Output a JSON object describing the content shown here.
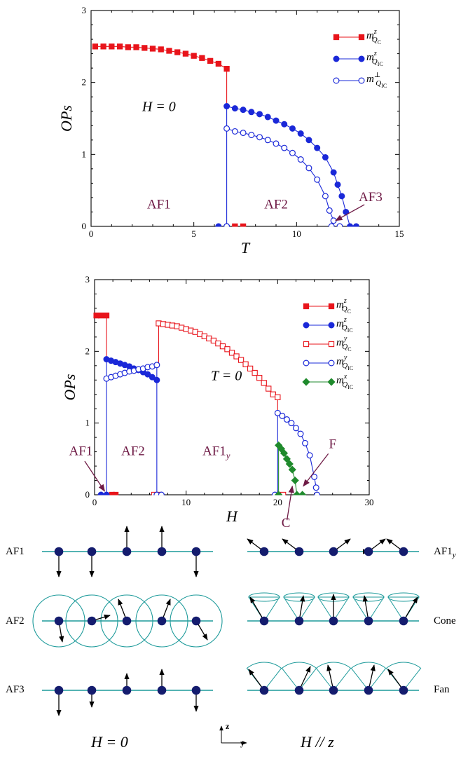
{
  "colors": {
    "red": "#e8141b",
    "blue": "#1a28d8",
    "green": "#1f8a2c",
    "maroon": "#6e1a45",
    "teal": "#1c9a9a",
    "navy": "#141c6e",
    "axis": "#000000"
  },
  "chart_data": [
    {
      "type": "line",
      "xlabel": "T",
      "ylabel": "OPs",
      "xlim": [
        0,
        15
      ],
      "ylim": [
        0,
        3
      ],
      "xticks": [
        "0",
        "5",
        "10",
        "15"
      ],
      "yticks": [
        "0",
        "1",
        "2",
        "3"
      ],
      "legend_position": "top-right",
      "annotation_text": "H = 0",
      "regions": [
        {
          "label": "AF1",
          "x": 3.3,
          "y": 0.25
        },
        {
          "label": "AF2",
          "x": 9.0,
          "y": 0.25
        },
        {
          "label": "AF3",
          "x": 13.6,
          "y": 0.35,
          "arrow_to": [
            11.9,
            0.08
          ]
        }
      ],
      "series": [
        {
          "name": "m^z_{Q_C}",
          "base": "m",
          "sup": "z",
          "sub": "Q",
          "subsub": "C",
          "color_key": "red",
          "marker": "square",
          "filled": true,
          "x": [
            0.2,
            0.6,
            1.0,
            1.4,
            1.8,
            2.2,
            2.6,
            3.0,
            3.4,
            3.8,
            4.2,
            4.6,
            5.0,
            5.4,
            5.8,
            6.2,
            6.6
          ],
          "y": [
            2.5,
            2.5,
            2.5,
            2.5,
            2.49,
            2.49,
            2.48,
            2.47,
            2.46,
            2.44,
            2.42,
            2.4,
            2.37,
            2.34,
            2.3,
            2.26,
            2.19
          ],
          "extra_lines": [
            [
              [
                6.6,
                2.19
              ],
              [
                6.6,
                1.67
              ]
            ]
          ],
          "extra_points": [
            [
              7.0,
              0.0
            ],
            [
              7.4,
              0.0
            ]
          ]
        },
        {
          "name": "m^z_{Q_IC}",
          "base": "m",
          "sup": "z",
          "sub": "Q",
          "subsub": "IC",
          "color_key": "blue",
          "marker": "circle",
          "filled": true,
          "x": [
            6.6,
            7.0,
            7.4,
            7.8,
            8.2,
            8.6,
            9.0,
            9.4,
            9.8,
            10.2,
            10.6,
            11.0,
            11.4,
            11.8,
            12.0,
            12.2,
            12.4,
            12.6
          ],
          "y": [
            1.67,
            1.64,
            1.62,
            1.59,
            1.56,
            1.52,
            1.47,
            1.42,
            1.36,
            1.29,
            1.2,
            1.09,
            0.96,
            0.75,
            0.58,
            0.42,
            0.2,
            0.0
          ],
          "extra_lines": [
            [
              [
                6.6,
                1.67
              ],
              [
                6.6,
                0.0
              ]
            ]
          ],
          "extra_points": [
            [
              6.2,
              0.0
            ],
            [
              6.6,
              0.0
            ],
            [
              12.9,
              0.0
            ]
          ]
        },
        {
          "name": "m^⊥_{Q_IC}",
          "base": "m",
          "sup": "⊥",
          "sub": "Q",
          "subsub": "IC",
          "color_key": "blue",
          "marker": "circle",
          "filled": false,
          "x": [
            6.6,
            7.0,
            7.4,
            7.8,
            8.2,
            8.6,
            9.0,
            9.4,
            9.8,
            10.2,
            10.6,
            11.0,
            11.4,
            11.6,
            11.8
          ],
          "y": [
            1.36,
            1.32,
            1.3,
            1.27,
            1.24,
            1.2,
            1.15,
            1.09,
            1.02,
            0.93,
            0.81,
            0.65,
            0.42,
            0.22,
            0.08
          ],
          "extra_lines": [],
          "extra_points": [
            [
              6.6,
              0.0
            ],
            [
              11.7,
              0.0
            ],
            [
              12.1,
              0.0
            ]
          ]
        }
      ]
    },
    {
      "type": "line",
      "xlabel": "H",
      "ylabel": "OPs",
      "xlim": [
        0,
        30
      ],
      "ylim": [
        0,
        3
      ],
      "xticks": [
        "0",
        "10",
        "20",
        "30"
      ],
      "yticks": [
        "0",
        "1",
        "2",
        "3"
      ],
      "legend_position": "top-right",
      "annotation_text": "T = 0",
      "regions": [
        {
          "label": "AF1",
          "x": -1.5,
          "y": 0.55,
          "arrow_to": [
            1.1,
            0.05
          ]
        },
        {
          "label": "AF2",
          "x": 4.2,
          "y": 0.55
        },
        {
          "label": "AF1",
          "label_sub": "y",
          "x": 13.3,
          "y": 0.55
        },
        {
          "label": "C",
          "x": 20.9,
          "y": -0.45,
          "arrow_to": [
            21.6,
            0.12
          ]
        },
        {
          "label": "F",
          "x": 26.0,
          "y": 0.65,
          "arrow_to": [
            22.8,
            0.12
          ]
        }
      ],
      "series": [
        {
          "name": "m^z_{Q_C}",
          "base": "m",
          "sup": "z",
          "sub": "Q",
          "subsub": "C",
          "color_key": "red",
          "marker": "square",
          "filled": true,
          "x": [
            0.2,
            0.7,
            1.3
          ],
          "y": [
            2.5,
            2.5,
            2.5
          ],
          "extra_lines": [
            [
              [
                1.3,
                2.5
              ],
              [
                1.3,
                1.9
              ]
            ]
          ],
          "extra_points": [
            [
              1.9,
              0.0
            ],
            [
              2.3,
              0.0
            ]
          ]
        },
        {
          "name": "m^z_{Q_IC}",
          "base": "m",
          "sup": "z",
          "sub": "Q",
          "subsub": "IC",
          "color_key": "blue",
          "marker": "circle",
          "filled": true,
          "x": [
            1.3,
            1.8,
            2.3,
            2.8,
            3.3,
            3.8,
            4.3,
            4.8,
            5.3,
            5.8,
            6.3,
            6.8
          ],
          "y": [
            1.89,
            1.87,
            1.85,
            1.83,
            1.81,
            1.79,
            1.76,
            1.74,
            1.71,
            1.68,
            1.64,
            1.6
          ],
          "extra_lines": [
            [
              [
                1.3,
                1.89
              ],
              [
                1.3,
                0.0
              ]
            ]
          ],
          "extra_points": [
            [
              0.7,
              0.0
            ],
            [
              1.3,
              0.0
            ]
          ]
        },
        {
          "name": "m^y_{Q_C}",
          "base": "m",
          "sup": "y",
          "sub": "Q",
          "subsub": "C",
          "color_key": "red",
          "marker": "square",
          "filled": false,
          "x": [
            7.0,
            7.5,
            8.0,
            8.5,
            9.0,
            9.5,
            10.0,
            10.5,
            11.0,
            11.5,
            12.0,
            12.5,
            13.0,
            13.5,
            14.0,
            14.5,
            15.0,
            15.5,
            16.0,
            16.5,
            17.0,
            17.5,
            18.0,
            18.5,
            19.0,
            19.5,
            20.0
          ],
          "y": [
            2.39,
            2.38,
            2.37,
            2.36,
            2.35,
            2.33,
            2.31,
            2.29,
            2.27,
            2.24,
            2.21,
            2.18,
            2.15,
            2.11,
            2.07,
            2.03,
            1.98,
            1.93,
            1.88,
            1.82,
            1.76,
            1.7,
            1.63,
            1.56,
            1.48,
            1.4,
            1.36
          ],
          "extra_lines": [
            [
              [
                7.0,
                2.39
              ],
              [
                7.0,
                1.81
              ]
            ],
            [
              [
                20.0,
                1.36
              ],
              [
                20.0,
                1.14
              ]
            ]
          ],
          "extra_points": [
            [
              6.5,
              0.0
            ],
            [
              7.0,
              0.0
            ],
            [
              20.6,
              0.0
            ]
          ]
        },
        {
          "name": "m^y_{Q_IC}",
          "base": "m",
          "sup": "y",
          "sub": "Q",
          "subsub": "IC",
          "color_key": "blue",
          "marker": "circle",
          "filled": false,
          "x": [
            1.3,
            1.8,
            2.3,
            2.8,
            3.3,
            3.8,
            4.3,
            4.8,
            5.3,
            5.8,
            6.3,
            6.8,
            20.0,
            20.5,
            21.0,
            21.5,
            22.0,
            22.5,
            23.0,
            23.5,
            24.0,
            24.2
          ],
          "y": [
            1.62,
            1.64,
            1.66,
            1.68,
            1.7,
            1.72,
            1.73,
            1.75,
            1.76,
            1.78,
            1.79,
            1.81,
            1.14,
            1.1,
            1.05,
            1.0,
            0.93,
            0.85,
            0.72,
            0.55,
            0.25,
            0.1
          ],
          "break_after": 11,
          "extra_lines": [
            [
              [
                6.8,
                1.81
              ],
              [
                6.8,
                0.0
              ]
            ],
            [
              [
                20.0,
                1.14
              ],
              [
                20.0,
                0.0
              ]
            ]
          ],
          "extra_points": [
            [
              6.8,
              0.0
            ],
            [
              7.3,
              0.0
            ],
            [
              19.7,
              0.0
            ],
            [
              24.3,
              0.0
            ]
          ]
        },
        {
          "name": "m^x_{Q_IC}",
          "base": "m",
          "sup": "x",
          "sub": "Q",
          "subsub": "IC",
          "color_key": "green",
          "marker": "diamond",
          "filled": true,
          "x": [
            20.1,
            20.4,
            20.7,
            21.0,
            21.3,
            21.6,
            21.9,
            22.1
          ],
          "y": [
            0.69,
            0.64,
            0.58,
            0.5,
            0.43,
            0.35,
            0.2,
            0.0
          ],
          "extra_lines": [
            [
              [
                20.1,
                0.69
              ],
              [
                20.1,
                0.0
              ]
            ]
          ],
          "extra_points": [
            [
              20.1,
              0.0
            ],
            [
              22.7,
              0.0
            ]
          ]
        }
      ]
    }
  ],
  "spin_panels": {
    "left_labels": [
      "AF1",
      "AF2",
      "AF3"
    ],
    "right_labels": [
      {
        "main": "AF1",
        "sub": "y"
      },
      {
        "main": "Cone",
        "sub": ""
      },
      {
        "main": "Fan",
        "sub": ""
      }
    ],
    "left_caption": "H = 0",
    "right_caption": "H // z",
    "axis_z": "z",
    "axis_y": "y"
  }
}
